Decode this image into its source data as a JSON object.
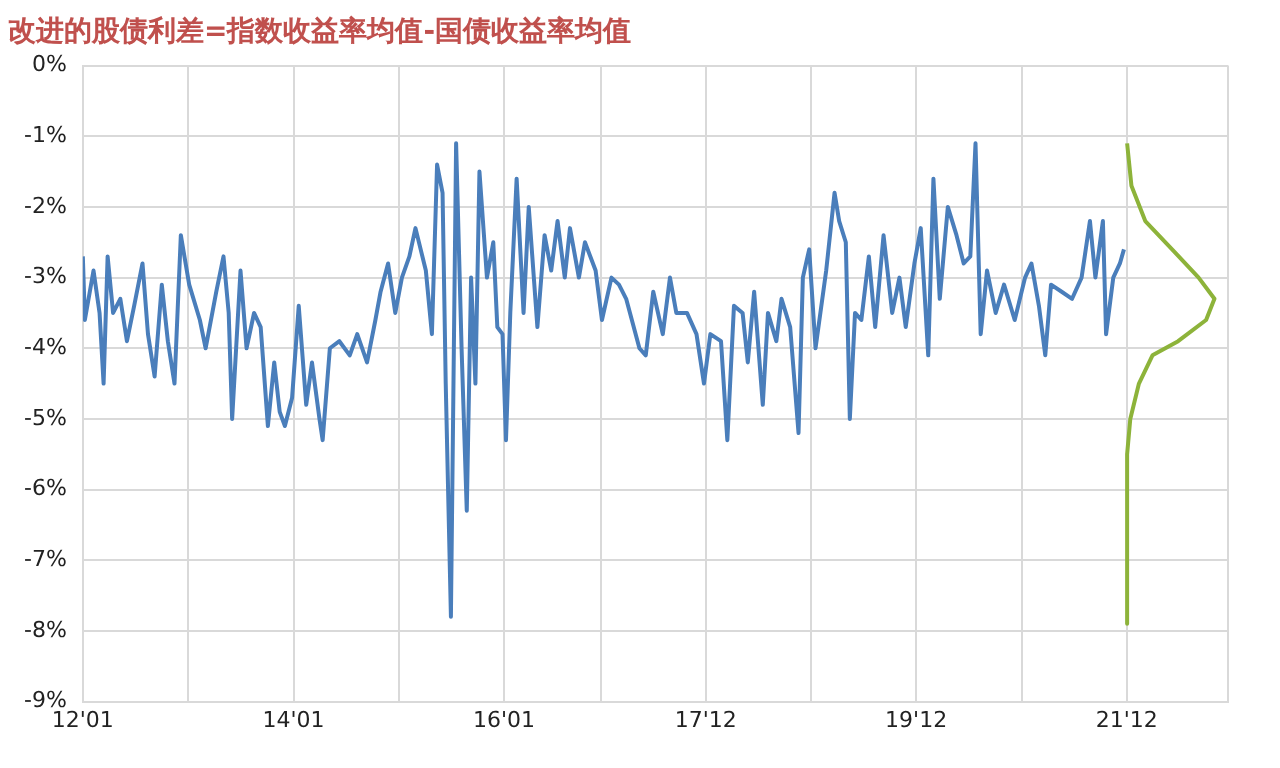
{
  "chart_data": {
    "type": "line",
    "title": "改进的股债利差=指数收益率均值-国债收益率均值",
    "xlim": [
      "2012-01-01",
      "2022-11-17"
    ],
    "xticks": [
      {
        "value": "2012-01",
        "label": "12'01"
      },
      {
        "value": "2013-01",
        "label": null
      },
      {
        "value": "2014-01",
        "label": "14'01"
      },
      {
        "value": "2015-01",
        "label": null
      },
      {
        "value": "2016-01",
        "label": "16'01"
      },
      {
        "value": "2016-12",
        "label": null
      },
      {
        "value": "2017-12",
        "label": "17'12"
      },
      {
        "value": "2018-12",
        "label": null
      },
      {
        "value": "2019-12",
        "label": "19'12"
      },
      {
        "value": "2020-12",
        "label": null
      },
      {
        "value": "2021-12",
        "label": "21'12"
      }
    ],
    "ylim": [
      -9,
      0
    ],
    "yticks": [
      {
        "value": 0,
        "label": "0%"
      },
      {
        "value": -1,
        "label": "-1%"
      },
      {
        "value": -2,
        "label": "-2%"
      },
      {
        "value": -3,
        "label": "-3%"
      },
      {
        "value": -4,
        "label": "-4%"
      },
      {
        "value": -5,
        "label": "-5%"
      },
      {
        "value": -6,
        "label": "-6%"
      },
      {
        "value": -7,
        "label": "-7%"
      },
      {
        "value": -8,
        "label": "-8%"
      },
      {
        "value": -9,
        "label": "-9%"
      }
    ],
    "grid": true,
    "marker": "none",
    "line_style": "solid",
    "series": [
      {
        "type": "line",
        "color": "#4a7ebb",
        "x": [
          "2012-01-01",
          "2012-01-08",
          "2012-02-07",
          "2012-02-28",
          "2012-03-13",
          "2012-03-27",
          "2012-04-15",
          "2012-05-10",
          "2012-06-02",
          "2012-06-27",
          "2012-07-26",
          "2012-08-14",
          "2012-09-06",
          "2012-10-01",
          "2012-10-22",
          "2012-11-14",
          "2012-12-06",
          "2013-01-04",
          "2013-02-10",
          "2013-03-02",
          "2013-04-08",
          "2013-05-03",
          "2013-05-21",
          "2013-06-02",
          "2013-07-01",
          "2013-07-22",
          "2013-08-17",
          "2013-09-09",
          "2013-10-04",
          "2013-10-26",
          "2013-11-14",
          "2013-12-02",
          "2013-12-27",
          "2014-01-19",
          "2014-02-14",
          "2014-03-06",
          "2014-04-01",
          "2014-04-12",
          "2014-05-07",
          "2014-06-09",
          "2014-07-15",
          "2014-08-10",
          "2014-09-13",
          "2014-10-12",
          "2014-10-30",
          "2014-11-25",
          "2014-12-20",
          "2015-01-12",
          "2015-02-07",
          "2015-02-28",
          "2015-04-05",
          "2015-04-26",
          "2015-05-14",
          "2015-06-02",
          "2015-06-13",
          "2015-07-01",
          "2015-07-19",
          "2015-08-07",
          "2015-08-25",
          "2015-09-09",
          "2015-09-24",
          "2015-10-08",
          "2015-11-03",
          "2015-11-25",
          "2015-12-09",
          "2015-12-27",
          "2016-01-08",
          "2016-01-23",
          "2016-02-14",
          "2016-03-09",
          "2016-03-27",
          "2016-04-26",
          "2016-05-21",
          "2016-06-13",
          "2016-07-05",
          "2016-07-30",
          "2016-08-17",
          "2016-09-17",
          "2016-10-08",
          "2016-11-14",
          "2016-12-06",
          "2017-01-08",
          "2017-02-03",
          "2017-02-28",
          "2017-04-15",
          "2017-05-07",
          "2017-06-02",
          "2017-07-05",
          "2017-07-30",
          "2017-08-21",
          "2017-09-27",
          "2017-10-30",
          "2017-11-25",
          "2017-12-17",
          "2018-01-23",
          "2018-02-14",
          "2018-03-09",
          "2018-04-08",
          "2018-04-26",
          "2018-05-18",
          "2018-06-17",
          "2018-07-05",
          "2018-08-03",
          "2018-08-21",
          "2018-09-20",
          "2018-10-19",
          "2018-11-03",
          "2018-11-25",
          "2018-12-17",
          "2019-01-23",
          "2019-02-21",
          "2019-03-09",
          "2019-04-01",
          "2019-04-15",
          "2019-05-03",
          "2019-05-25",
          "2019-06-20",
          "2019-07-12",
          "2019-08-10",
          "2019-09-09",
          "2019-10-04",
          "2019-10-26",
          "2019-11-25",
          "2019-12-17",
          "2020-01-12",
          "2020-01-30",
          "2020-02-21",
          "2020-03-20",
          "2020-04-19",
          "2020-05-14",
          "2020-06-06",
          "2020-06-24",
          "2020-07-12",
          "2020-08-03",
          "2020-09-02",
          "2020-10-01",
          "2020-11-07",
          "2020-12-13",
          "2021-01-04",
          "2021-01-30",
          "2021-02-21",
          "2021-03-13",
          "2021-04-19",
          "2021-05-25",
          "2021-06-27",
          "2021-07-26",
          "2021-08-14",
          "2021-09-09",
          "2021-09-20",
          "2021-10-15",
          "2021-11-07",
          "2021-11-21"
        ],
        "values": [
          -2.7,
          -3.6,
          -2.9,
          -3.5,
          -4.5,
          -2.7,
          -3.5,
          -3.3,
          -3.9,
          -3.4,
          -2.8,
          -3.8,
          -4.4,
          -3.1,
          -3.9,
          -4.5,
          -2.4,
          -3.1,
          -3.6,
          -4.0,
          -3.2,
          -2.7,
          -3.5,
          -5.0,
          -2.9,
          -4.0,
          -3.5,
          -3.7,
          -5.1,
          -4.2,
          -4.9,
          -5.1,
          -4.7,
          -3.4,
          -4.8,
          -4.2,
          -5.0,
          -5.3,
          -4.0,
          -3.9,
          -4.1,
          -3.8,
          -4.2,
          -3.6,
          -3.2,
          -2.8,
          -3.5,
          -3.0,
          -2.7,
          -2.3,
          -2.9,
          -3.8,
          -1.4,
          -1.8,
          -4.5,
          -7.8,
          -1.1,
          -4.0,
          -6.3,
          -3.0,
          -4.5,
          -1.5,
          -3.0,
          -2.5,
          -3.7,
          -3.8,
          -5.3,
          -3.5,
          -1.6,
          -3.5,
          -2.0,
          -3.7,
          -2.4,
          -2.9,
          -2.2,
          -3.0,
          -2.3,
          -3.0,
          -2.5,
          -2.9,
          -3.6,
          -3.0,
          -3.1,
          -3.3,
          -4.0,
          -4.1,
          -3.2,
          -3.8,
          -3.0,
          -3.5,
          -3.5,
          -3.8,
          -4.5,
          -3.8,
          -3.9,
          -5.3,
          -3.4,
          -3.5,
          -4.2,
          -3.2,
          -4.8,
          -3.5,
          -3.9,
          -3.3,
          -3.7,
          -5.2,
          -3.0,
          -2.6,
          -4.0,
          -2.9,
          -1.8,
          -2.2,
          -2.5,
          -5.0,
          -3.5,
          -3.6,
          -2.7,
          -3.7,
          -2.4,
          -3.5,
          -3.0,
          -3.7,
          -2.8,
          -2.3,
          -4.1,
          -1.6,
          -3.3,
          -2.0,
          -2.4,
          -2.8,
          -2.7,
          -1.1,
          -3.8,
          -2.9,
          -3.5,
          -3.1,
          -3.6,
          -3.0,
          -2.8,
          -3.4,
          -4.1,
          -3.1,
          -3.2,
          -3.3,
          -3.0,
          -2.2,
          -3.0,
          -2.2,
          -3.8,
          -3.0,
          -2.8,
          -2.6
        ]
      },
      {
        "type": "line",
        "color": "#8db33a",
        "x": [
          "2021-12-02",
          "2021-12-17",
          "2022-02-03",
          "2022-05-07",
          "2022-08-07",
          "2022-10-01",
          "2022-09-02",
          "2022-05-28",
          "2022-02-28",
          "2022-01-12",
          "2021-12-13",
          "2021-12-02",
          "2021-12-02"
        ],
        "values": [
          -1.1,
          -1.7,
          -2.2,
          -2.6,
          -3.0,
          -3.3,
          -3.6,
          -3.9,
          -4.1,
          -4.5,
          -5.0,
          -5.5,
          -7.9
        ]
      }
    ]
  }
}
